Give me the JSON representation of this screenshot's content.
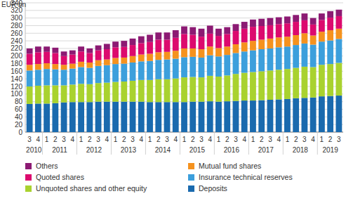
{
  "chart_data": {
    "type": "bar",
    "stacked": true,
    "grid": true,
    "y_label": "EUR bn",
    "categories": [
      "3",
      "4",
      "1",
      "2",
      "3",
      "4",
      "1",
      "2",
      "3",
      "4",
      "1",
      "2",
      "3",
      "4",
      "1",
      "2",
      "3",
      "4",
      "1",
      "2",
      "3",
      "4",
      "1",
      "2",
      "3",
      "4",
      "1",
      "2",
      "3",
      "4",
      "1",
      "2",
      "3",
      "4",
      "1",
      "2",
      "3"
    ],
    "x_groups": [
      {
        "label": "2010",
        "size": 2
      },
      {
        "label": "2011",
        "size": 4
      },
      {
        "label": "2012",
        "size": 4
      },
      {
        "label": "2013",
        "size": 4
      },
      {
        "label": "2014",
        "size": 4
      },
      {
        "label": "2015",
        "size": 4
      },
      {
        "label": "2016",
        "size": 4
      },
      {
        "label": "2017",
        "size": 4
      },
      {
        "label": "2018",
        "size": 4
      },
      {
        "label": "2019",
        "size": 3
      }
    ],
    "ylim": [
      0,
      340
    ],
    "yticks": [
      0,
      20,
      40,
      60,
      80,
      100,
      120,
      140,
      160,
      180,
      200,
      220,
      240,
      260,
      280,
      300,
      320,
      340
    ],
    "series": [
      {
        "name": "Deposits",
        "color": "#1a6aae",
        "values": [
          74,
          75,
          75,
          76,
          78,
          79,
          79,
          79,
          80,
          80,
          80,
          80,
          80,
          80,
          79,
          79,
          79,
          79,
          79,
          80,
          80,
          81,
          80,
          81,
          82,
          83,
          83,
          84,
          85,
          86,
          87,
          89,
          90,
          91,
          94,
          95,
          96
        ]
      },
      {
        "name": "Unquoted shares and other equity",
        "color": "#a9d22f",
        "values": [
          46,
          47,
          48,
          47,
          45,
          46,
          48,
          47,
          49,
          50,
          52,
          53,
          55,
          57,
          58,
          60,
          60,
          62,
          65,
          65,
          64,
          67,
          66,
          68,
          71,
          73,
          75,
          76,
          77,
          78,
          79,
          80,
          82,
          80,
          83,
          84,
          86
        ]
      },
      {
        "name": "Insurance technical reserves",
        "color": "#3c9fdc",
        "values": [
          42,
          42,
          43,
          42,
          41,
          42,
          44,
          43,
          45,
          46,
          47,
          47,
          48,
          49,
          50,
          51,
          52,
          52,
          53,
          53,
          52,
          54,
          53,
          54,
          55,
          56,
          57,
          58,
          58,
          59,
          59,
          60,
          61,
          59,
          61,
          62,
          63
        ]
      },
      {
        "name": "Mutual fund shares",
        "color": "#f5921e",
        "values": [
          15,
          15,
          15,
          14,
          13,
          13,
          14,
          14,
          15,
          15,
          16,
          16,
          17,
          18,
          19,
          20,
          20,
          21,
          23,
          22,
          22,
          23,
          22,
          22,
          23,
          24,
          25,
          25,
          26,
          26,
          26,
          26,
          27,
          24,
          26,
          27,
          27
        ]
      },
      {
        "name": "Quoted shares",
        "color": "#dc0a6e",
        "values": [
          29,
          31,
          30,
          29,
          23,
          24,
          27,
          25,
          26,
          27,
          28,
          28,
          29,
          30,
          31,
          33,
          32,
          34,
          38,
          36,
          33,
          34,
          32,
          33,
          35,
          36,
          37,
          36,
          35,
          35,
          35,
          35,
          34,
          29,
          31,
          33,
          33
        ]
      },
      {
        "name": "Others",
        "color": "#8c1a73",
        "values": [
          14,
          15,
          14,
          14,
          12,
          11,
          13,
          12,
          13,
          14,
          15,
          16,
          17,
          18,
          19,
          19,
          19,
          20,
          20,
          20,
          21,
          21,
          19,
          18,
          18,
          18,
          19,
          19,
          19,
          18,
          18,
          18,
          18,
          17,
          17,
          17,
          17
        ]
      }
    ]
  }
}
